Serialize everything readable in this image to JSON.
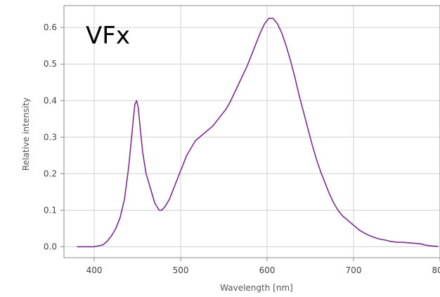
{
  "chart_data": {
    "type": "line",
    "title": "",
    "annotation": "VFx",
    "xlabel": "Wavelength [nm]",
    "ylabel": "Relative intensity",
    "xlim": [
      365,
      800
    ],
    "ylim": [
      -0.03,
      0.66
    ],
    "grid": true,
    "x_ticks": [
      400,
      500,
      600,
      700,
      800
    ],
    "x_tick_labels": [
      "400",
      "500",
      "600",
      "700",
      "800"
    ],
    "y_ticks": [
      0.0,
      0.1,
      0.2,
      0.3,
      0.4,
      0.5,
      0.6
    ],
    "y_tick_labels": [
      "0.0",
      "0.1",
      "0.2",
      "0.3",
      "0.4",
      "0.5",
      "0.6"
    ],
    "colors": {
      "line": "#7b2d8e",
      "grid": "#d0d0d0",
      "axes": "#888888"
    },
    "series": [
      {
        "x": [
          380,
          390,
          400,
          410,
          415,
          420,
          425,
          430,
          435,
          440,
          444,
          447,
          449,
          451,
          453,
          456,
          460,
          465,
          470,
          475,
          478,
          482,
          487,
          492,
          497,
          502,
          507,
          512,
          517,
          522,
          527,
          532,
          537,
          542,
          547,
          552,
          557,
          562,
          567,
          572,
          577,
          582,
          587,
          592,
          597,
          602,
          607,
          612,
          617,
          622,
          627,
          632,
          637,
          642,
          647,
          652,
          657,
          662,
          667,
          672,
          677,
          682,
          687,
          692,
          697,
          702,
          707,
          712,
          717,
          722,
          727,
          732,
          737,
          742,
          747,
          752,
          757,
          762,
          767,
          772,
          777,
          782,
          787,
          792,
          798
        ],
        "y": [
          0.0,
          0.0,
          0.0,
          0.005,
          0.015,
          0.03,
          0.05,
          0.08,
          0.13,
          0.22,
          0.32,
          0.39,
          0.4,
          0.38,
          0.33,
          0.26,
          0.2,
          0.16,
          0.12,
          0.1,
          0.1,
          0.11,
          0.13,
          0.16,
          0.19,
          0.22,
          0.25,
          0.27,
          0.29,
          0.3,
          0.31,
          0.32,
          0.33,
          0.345,
          0.36,
          0.375,
          0.395,
          0.42,
          0.445,
          0.47,
          0.495,
          0.525,
          0.555,
          0.585,
          0.61,
          0.625,
          0.625,
          0.61,
          0.585,
          0.55,
          0.51,
          0.465,
          0.415,
          0.37,
          0.325,
          0.28,
          0.24,
          0.205,
          0.175,
          0.145,
          0.12,
          0.1,
          0.085,
          0.075,
          0.065,
          0.055,
          0.045,
          0.038,
          0.032,
          0.027,
          0.023,
          0.02,
          0.018,
          0.015,
          0.013,
          0.012,
          0.012,
          0.011,
          0.01,
          0.009,
          0.008,
          0.005,
          0.003,
          0.002,
          0.001
        ]
      }
    ]
  }
}
